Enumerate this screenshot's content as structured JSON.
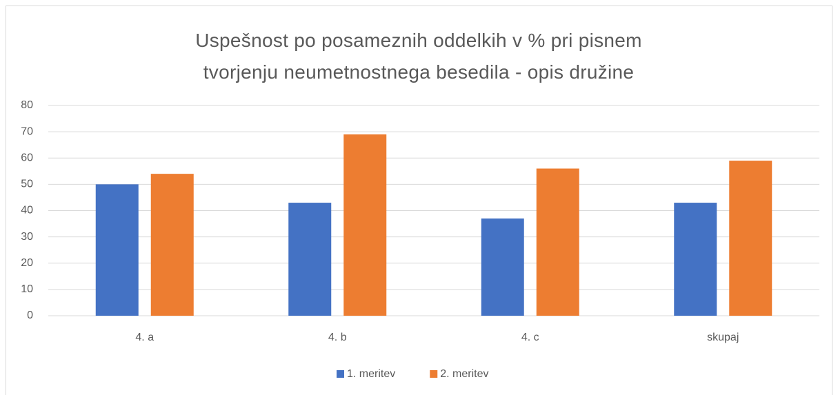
{
  "chart_data": {
    "type": "bar",
    "title": "Uspešnost po posameznih oddelkih v % pri pisnem tvorjenju neumetnostnega besedila - opis družine",
    "categories": [
      "4. a",
      "4. b",
      "4. c",
      "skupaj"
    ],
    "series": [
      {
        "name": "1. meritev",
        "color": "#4472c4",
        "values": [
          50,
          43,
          37,
          43
        ]
      },
      {
        "name": "2. meritev",
        "color": "#ed7d31",
        "values": [
          54,
          69,
          56,
          59
        ]
      }
    ],
    "ylim": [
      0,
      80
    ],
    "yticks": [
      0,
      10,
      20,
      30,
      40,
      50,
      60,
      70,
      80
    ],
    "grid": true,
    "legend": "bottom"
  }
}
